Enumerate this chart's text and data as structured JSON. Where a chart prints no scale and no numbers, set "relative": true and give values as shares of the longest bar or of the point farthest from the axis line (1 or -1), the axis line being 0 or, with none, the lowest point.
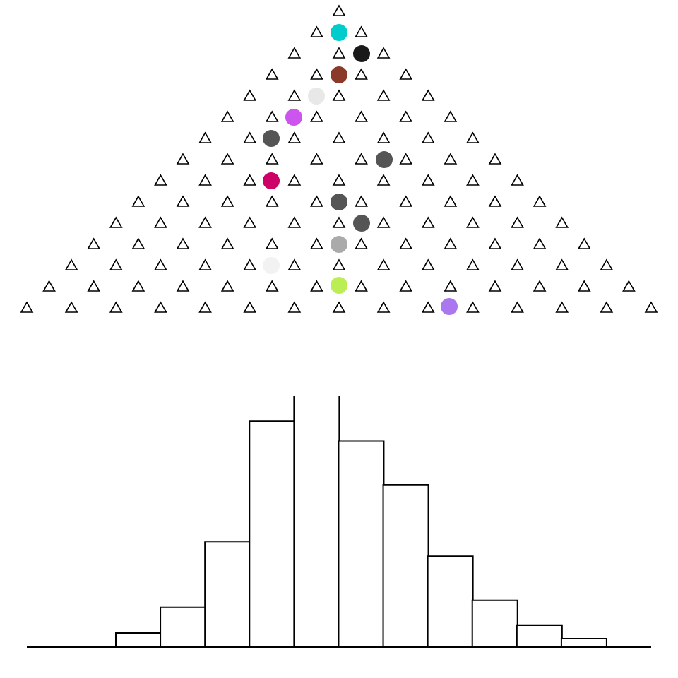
{
  "chart_data": {
    "type": "bar",
    "relative": true,
    "tick_labels": false,
    "categories": [
      null,
      null,
      null,
      null,
      null,
      null,
      null,
      null,
      null,
      null,
      null
    ],
    "values": [
      0.056,
      0.158,
      0.418,
      0.898,
      1,
      0.819,
      0.644,
      0.362,
      0.186,
      0.085,
      0.034
    ],
    "color": "#ffffff"
  }
}
